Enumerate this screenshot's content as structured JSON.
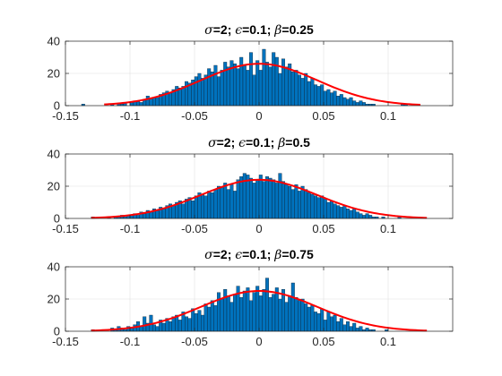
{
  "chart_data": [
    {
      "type": "bar",
      "subtype": "histogram-with-fit",
      "title_parts": [
        {
          "text": "σ",
          "greek": true
        },
        {
          "text": "=2; ",
          "greek": false
        },
        {
          "text": "ϵ",
          "greek": true
        },
        {
          "text": "=0.1; ",
          "greek": false
        },
        {
          "text": "β",
          "greek": true
        },
        {
          "text": "=0.25",
          "greek": false
        }
      ],
      "xlim": [
        -0.15,
        0.15
      ],
      "ylim": [
        0,
        40
      ],
      "xticks": [
        "-0.15",
        "-0.1",
        "-0.05",
        "0",
        "0.05",
        "0.1"
      ],
      "yticks": [
        "0",
        "20",
        "40"
      ],
      "grid": true,
      "bin_width": 0.0025,
      "bar_color": "#0072BD",
      "fit_color": "#FF0000",
      "fit": {
        "mean": 0.0,
        "sigma": 0.045,
        "peak": 26,
        "range": [
          -0.12,
          0.125
        ]
      },
      "bins_start": -0.1375,
      "counts": [
        1,
        0,
        0,
        0,
        0,
        0,
        0,
        0,
        0,
        1,
        0,
        1,
        1,
        2,
        0,
        2,
        3,
        3,
        2,
        4,
        6,
        4,
        5,
        5,
        7,
        8,
        9,
        8,
        10,
        12,
        11,
        12,
        15,
        14,
        16,
        18,
        20,
        17,
        19,
        23,
        21,
        25,
        18,
        22,
        27,
        24,
        28,
        26,
        23,
        30,
        25,
        22,
        33,
        19,
        28,
        22,
        35,
        27,
        24,
        33,
        30,
        20,
        29,
        24,
        26,
        21,
        22,
        19,
        17,
        20,
        15,
        17,
        13,
        12,
        13,
        9,
        10,
        8,
        9,
        6,
        7,
        5,
        4,
        5,
        3,
        2,
        3,
        2,
        1,
        1,
        1,
        0,
        0,
        0,
        0,
        0,
        0,
        0,
        0,
        1,
        1
      ]
    },
    {
      "type": "bar",
      "subtype": "histogram-with-fit",
      "title_parts": [
        {
          "text": "σ",
          "greek": true
        },
        {
          "text": "=2; ",
          "greek": false
        },
        {
          "text": "ϵ",
          "greek": true
        },
        {
          "text": "=0.1; ",
          "greek": false
        },
        {
          "text": "β",
          "greek": true
        },
        {
          "text": "=0.5",
          "greek": false
        }
      ],
      "xlim": [
        -0.15,
        0.15
      ],
      "ylim": [
        0,
        40
      ],
      "xticks": [
        "-0.15",
        "-0.1",
        "-0.05",
        "0",
        "0.05",
        "0.1"
      ],
      "yticks": [
        "0",
        "20",
        "40"
      ],
      "grid": true,
      "bin_width": 0.0025,
      "bar_color": "#0072BD",
      "fit_color": "#FF0000",
      "fit": {
        "mean": 0.0,
        "sigma": 0.045,
        "peak": 24,
        "range": [
          -0.13,
          0.13
        ]
      },
      "bins_start": -0.13,
      "counts": [
        1,
        0,
        0,
        0,
        0,
        1,
        0,
        1,
        1,
        2,
        1,
        2,
        2,
        3,
        2,
        4,
        3,
        5,
        4,
        6,
        5,
        7,
        6,
        8,
        9,
        8,
        10,
        11,
        9,
        12,
        13,
        11,
        14,
        16,
        15,
        14,
        17,
        16,
        18,
        20,
        19,
        22,
        18,
        21,
        17,
        24,
        26,
        28,
        27,
        25,
        22,
        24,
        27,
        23,
        26,
        25,
        24,
        22,
        28,
        23,
        21,
        20,
        18,
        21,
        17,
        20,
        18,
        16,
        15,
        14,
        13,
        14,
        12,
        10,
        11,
        9,
        8,
        7,
        8,
        6,
        5,
        6,
        4,
        3,
        2,
        3,
        2,
        1,
        1,
        0,
        1,
        0,
        0,
        0,
        0,
        1
      ]
    },
    {
      "type": "bar",
      "subtype": "histogram-with-fit",
      "title_parts": [
        {
          "text": "σ",
          "greek": true
        },
        {
          "text": "=2; ",
          "greek": false
        },
        {
          "text": "ϵ",
          "greek": true
        },
        {
          "text": "=0.1; ",
          "greek": false
        },
        {
          "text": "β",
          "greek": true
        },
        {
          "text": "=0.75",
          "greek": false
        }
      ],
      "xlim": [
        -0.15,
        0.15
      ],
      "ylim": [
        0,
        40
      ],
      "xticks": [
        "-0.15",
        "-0.1",
        "-0.05",
        "0",
        "0.05",
        "0.1"
      ],
      "yticks": [
        "0",
        "20",
        "40"
      ],
      "grid": true,
      "bin_width": 0.0025,
      "bar_color": "#0072BD",
      "fit_color": "#FF0000",
      "fit": {
        "mean": 0.0,
        "sigma": 0.045,
        "peak": 25,
        "range": [
          -0.13,
          0.13
        ]
      },
      "bins_start": -0.13,
      "counts": [
        1,
        0,
        0,
        0,
        0,
        0,
        2,
        1,
        3,
        2,
        1,
        3,
        2,
        4,
        6,
        3,
        9,
        5,
        10,
        4,
        3,
        7,
        5,
        8,
        6,
        9,
        10,
        7,
        12,
        9,
        8,
        14,
        11,
        13,
        10,
        17,
        15,
        19,
        16,
        24,
        20,
        26,
        22,
        18,
        23,
        28,
        21,
        25,
        27,
        19,
        24,
        28,
        22,
        26,
        33,
        21,
        23,
        27,
        20,
        26,
        18,
        22,
        30,
        21,
        19,
        20,
        17,
        15,
        16,
        12,
        11,
        14,
        7,
        12,
        9,
        10,
        6,
        8,
        4,
        6,
        3,
        5,
        2,
        3,
        1,
        2,
        1,
        1,
        0,
        0,
        0,
        1
      ]
    }
  ]
}
